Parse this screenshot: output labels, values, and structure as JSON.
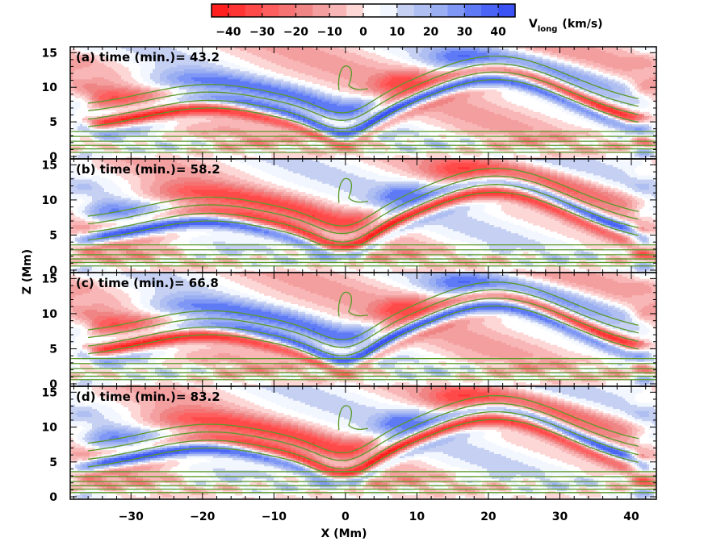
{
  "chart_data": {
    "type": "heatmap",
    "colorbar": {
      "label_main": "V",
      "label_sub": "long",
      "label_unit": "(km/s)",
      "range": [
        -45,
        45
      ],
      "ticks": [
        -40,
        -30,
        -20,
        -10,
        0,
        10,
        20,
        30,
        40
      ],
      "tick_labels": [
        "−40",
        "−30",
        "−20",
        "−10",
        "0",
        "10",
        "20",
        "30",
        "40"
      ],
      "levels": [
        -45,
        -40,
        -35,
        -30,
        -25,
        -20,
        -15,
        -10,
        -5,
        0,
        5,
        10,
        15,
        20,
        25,
        30,
        35,
        40,
        45
      ],
      "colors": [
        "#ff1f1f",
        "#ff3535",
        "#ff4a4a",
        "#ff5e5e",
        "#f57373",
        "#ef8585",
        "#f49f9f",
        "#f8b6b6",
        "#fdd6d6",
        "#ffffff",
        "#f2f6ff",
        "#c5d0f2",
        "#b0bff2",
        "#9aaef2",
        "#7f97f5",
        "#5f7af5",
        "#4a64f5",
        "#3b52f5"
      ]
    },
    "xlabel": "X (Mm)",
    "ylabel": "Z (Mm)",
    "xlim": [
      -38.5,
      43.5
    ],
    "ylim": [
      0,
      15.5
    ],
    "xticks": [
      -30,
      -20,
      -10,
      0,
      10,
      20,
      30,
      40
    ],
    "xtick_labels": [
      "−30",
      "−20",
      "−10",
      "0",
      "10",
      "20",
      "30",
      "40"
    ],
    "yticks": [
      0,
      5,
      10,
      15
    ],
    "ytick_labels": [
      "0",
      "5",
      "10",
      "15"
    ],
    "contour_color": "#5a9a2a",
    "panels": [
      {
        "label": "(a) time (min.)= 43.2",
        "time_min": 43.2,
        "sign": 1
      },
      {
        "label": "(b) time (min.)= 58.2",
        "time_min": 58.2,
        "sign": -1
      },
      {
        "label": "(c) time (min.)= 66.8",
        "time_min": 66.8,
        "sign": 1
      },
      {
        "label": "(d) time (min.)= 83.2",
        "time_min": 83.2,
        "sign": -1
      }
    ]
  }
}
